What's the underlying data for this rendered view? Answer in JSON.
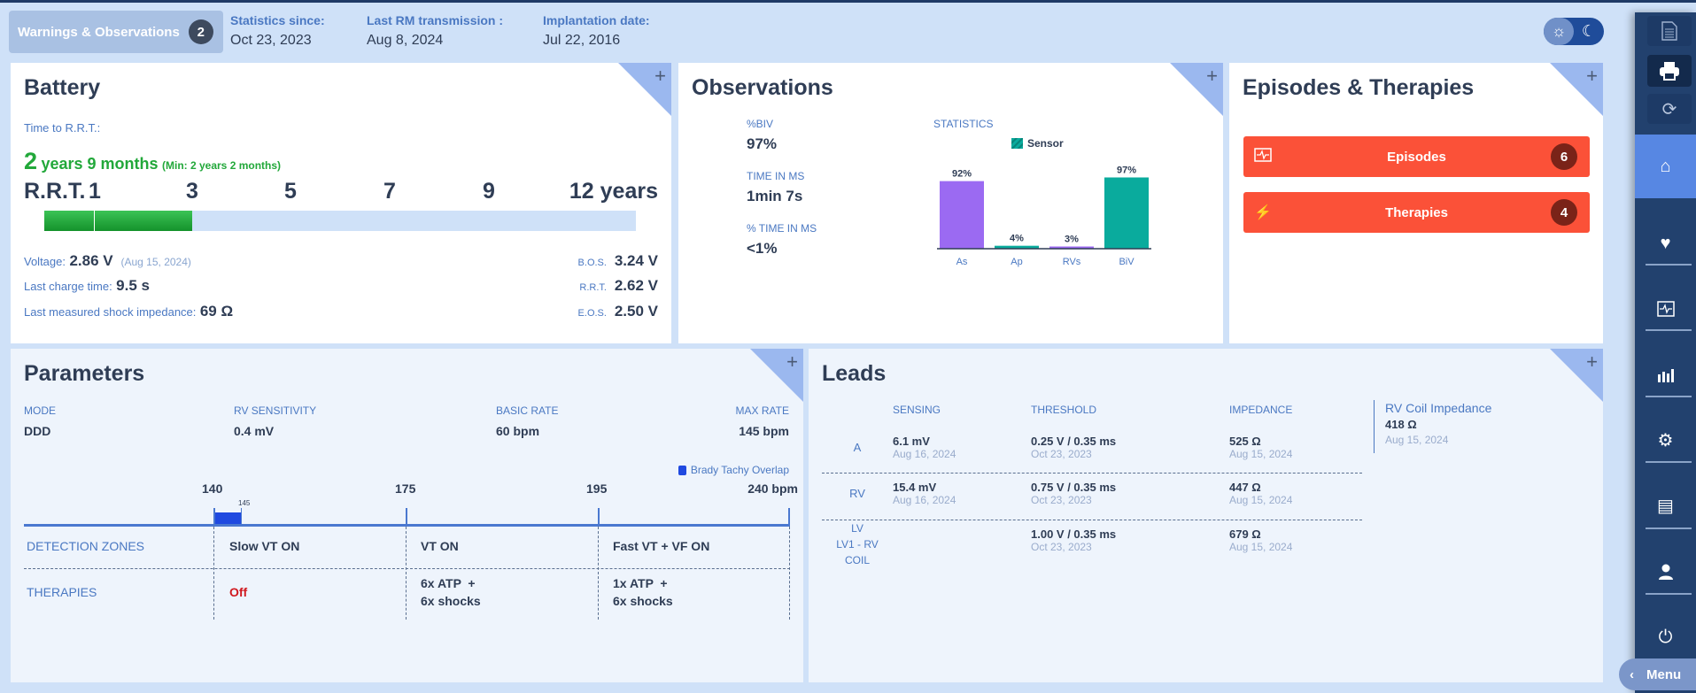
{
  "header": {
    "warnings_label": "Warnings & Observations",
    "warnings_count": "2",
    "stats": [
      {
        "label": "Statistics since:",
        "value": "Oct 23, 2023"
      },
      {
        "label": "Last RM transmission :",
        "value": "Aug 8, 2024"
      },
      {
        "label": "Implantation date:",
        "value": "Jul 22, 2016"
      }
    ],
    "theme_light_icon": "☼",
    "theme_dark_icon": "☾"
  },
  "battery": {
    "title": "Battery",
    "time_label": "Time to R.R.T.:",
    "time_years": "2",
    "time_rest": "years 9 months",
    "time_min": "(Min: 2 years 2 months)",
    "scale": [
      "R.R.T.",
      "1",
      "3",
      "5",
      "7",
      "9",
      "12 years"
    ],
    "remaining_years": 2.75,
    "scale_max_years": 12,
    "voltage_label": "Voltage:",
    "voltage": "2.86 V",
    "voltage_date": "(Aug 15, 2024)",
    "charge_label": "Last charge time:",
    "charge": "9.5 s",
    "shock_label": "Last measured shock impedance:",
    "shock": "69 Ω",
    "bos_label": "B.O.S.",
    "bos": "3.24 V",
    "rrt_label": "R.R.T.",
    "rrt": "2.62 V",
    "eos_label": "E.O.S.",
    "eos": "2.50 V"
  },
  "observations": {
    "title": "Observations",
    "items": [
      {
        "label": "%BIV",
        "value": "97%"
      },
      {
        "label": "TIME IN MS",
        "value": "1min 7s"
      },
      {
        "label": "% TIME IN MS",
        "value": "<1%"
      }
    ],
    "statistics_label": "STATISTICS",
    "legend": "Sensor"
  },
  "chart_data": {
    "type": "bar",
    "title": "STATISTICS",
    "categories": [
      "As",
      "Ap",
      "RVs",
      "BiV"
    ],
    "values": [
      92,
      4,
      3,
      97
    ],
    "value_labels": [
      "92%",
      "4%",
      "3%",
      "97%"
    ],
    "colors": [
      "#9b6af2",
      "#0aab9d",
      "#9b6af2",
      "#0aab9d"
    ],
    "legend": [
      "Sensor"
    ],
    "ylim": [
      0,
      100
    ]
  },
  "episodes": {
    "title": "Episodes & Therapies",
    "buttons": [
      {
        "label": "Episodes",
        "count": "6",
        "icon": "ecg-icon"
      },
      {
        "label": "Therapies",
        "count": "4",
        "icon": "bolt-icon"
      }
    ]
  },
  "parameters": {
    "title": "Parameters",
    "items": [
      {
        "label": "MODE",
        "value": "DDD"
      },
      {
        "label": "RV SENSITIVITY",
        "value": "0.4 mV"
      },
      {
        "label": "BASIC RATE",
        "value": "60 bpm"
      },
      {
        "label": "MAX RATE",
        "value": "145 bpm"
      }
    ],
    "legend": "Brady Tachy Overlap",
    "ticks": [
      "140",
      "175",
      "195",
      "240 bpm"
    ],
    "overlap_tick": "145",
    "detection_label": "DETECTION ZONES",
    "therapies_label": "THERAPIES",
    "zones": [
      {
        "name": "Slow VT ON",
        "therapy": "Off"
      },
      {
        "name": "VT ON",
        "therapy_1": "6x ATP  +",
        "therapy_2": "6x shocks"
      },
      {
        "name": "Fast VT + VF ON",
        "therapy_1": "1x ATP  +",
        "therapy_2": "6x shocks"
      }
    ]
  },
  "leads": {
    "title": "Leads",
    "headers": [
      "SENSING",
      "THRESHOLD",
      "IMPEDANCE"
    ],
    "rows": [
      {
        "name": "A",
        "sensing": "6.1 mV",
        "sensing_date": "Aug 16, 2024",
        "threshold": "0.25 V / 0.35 ms",
        "threshold_date": "Oct 23, 2023",
        "impedance": "525 Ω",
        "impedance_date": "Aug 15, 2024"
      },
      {
        "name": "RV",
        "sensing": "15.4 mV",
        "sensing_date": "Aug 16, 2024",
        "threshold": "0.75 V / 0.35 ms",
        "threshold_date": "Oct 23, 2023",
        "impedance": "447 Ω",
        "impedance_date": "Aug 15, 2024"
      },
      {
        "name_1": "LV",
        "name_2": "LV1 - RV",
        "name_3": "COIL",
        "threshold": "1.00 V / 0.35 ms",
        "threshold_date": "Oct 23, 2023",
        "impedance": "679 Ω",
        "impedance_date": "Aug 15, 2024"
      }
    ],
    "coil_label": "RV Coil Impedance",
    "coil_value": "418 Ω",
    "coil_date": "Aug 15, 2024"
  },
  "panel_expand": "+",
  "sidebar": {
    "menu_label": "Menu"
  }
}
